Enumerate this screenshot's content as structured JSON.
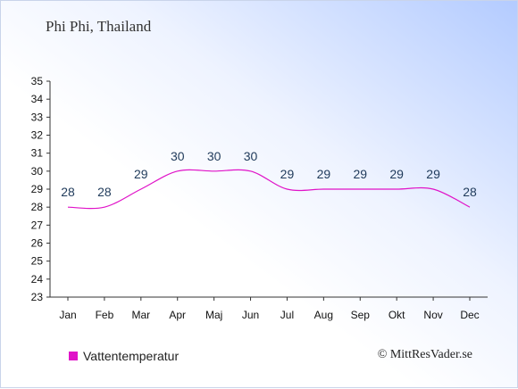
{
  "title": "Phi Phi, Thailand",
  "copyright": "© MittResVader.se",
  "colors": {
    "series": "#e013c8",
    "axis": "#333333",
    "label": "#1f3a5a"
  },
  "chart_data": {
    "type": "line",
    "categories": [
      "Jan",
      "Feb",
      "Mar",
      "Apr",
      "Maj",
      "Jun",
      "Jul",
      "Aug",
      "Sep",
      "Okt",
      "Nov",
      "Dec"
    ],
    "series": [
      {
        "name": "Vattentemperatur",
        "values": [
          28,
          28,
          29,
          30,
          30,
          30,
          29,
          29,
          29,
          29,
          29,
          28
        ]
      }
    ],
    "yticks": [
      23,
      24,
      25,
      26,
      27,
      28,
      29,
      30,
      31,
      32,
      33,
      34,
      35
    ],
    "ylim": [
      23,
      35
    ],
    "grid": false,
    "legend": "bottom-left"
  }
}
